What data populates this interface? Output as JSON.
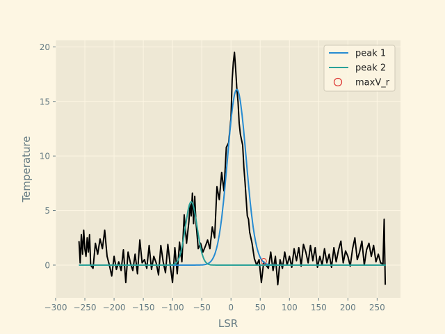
{
  "chart_data": {
    "type": "line",
    "title": "",
    "xlabel": "LSR",
    "ylabel": "Temperature",
    "xlim": [
      -300,
      290
    ],
    "ylim": [
      -3,
      20.6
    ],
    "xticks": [
      -300,
      -250,
      -200,
      -150,
      -100,
      -50,
      0,
      50,
      100,
      150,
      200,
      250
    ],
    "yticks": [
      0,
      5,
      10,
      15,
      20
    ],
    "xtick_labels": [
      "−300",
      "−250",
      "−200",
      "−150",
      "−100",
      "−50",
      "0",
      "50",
      "100",
      "150",
      "200",
      "250"
    ],
    "ytick_labels": [
      "0",
      "5",
      "10",
      "15",
      "20"
    ],
    "grid": true,
    "legend_position": "top-right",
    "colors": {
      "background": "#fdf6e3",
      "axes_face": "#eee8d5",
      "grid": "#fdf6e3",
      "spectrum": "#000000",
      "peak1": "#268bd2",
      "peak2": "#2aa198",
      "marker": "#dc322f",
      "text": "#657b83"
    },
    "spectrum": {
      "x": [
        -260,
        -258,
        -256,
        -254,
        -252,
        -250,
        -248,
        -246,
        -244,
        -242,
        -240,
        -236,
        -232,
        -228,
        -224,
        -220,
        -216,
        -212,
        -208,
        -204,
        -200,
        -196,
        -192,
        -188,
        -184,
        -180,
        -176,
        -172,
        -168,
        -164,
        -160,
        -156,
        -152,
        -148,
        -144,
        -140,
        -136,
        -132,
        -128,
        -124,
        -120,
        -116,
        -112,
        -108,
        -104,
        -100,
        -96,
        -92,
        -88,
        -84,
        -80,
        -76,
        -72,
        -70,
        -68,
        -66,
        -64,
        -62,
        -60,
        -56,
        -52,
        -48,
        -44,
        -40,
        -36,
        -32,
        -28,
        -24,
        -20,
        -16,
        -12,
        -8,
        -4,
        0,
        2,
        4,
        6,
        8,
        10,
        12,
        14,
        16,
        18,
        20,
        22,
        24,
        26,
        28,
        30,
        32,
        36,
        40,
        44,
        48,
        52,
        56,
        60,
        64,
        68,
        72,
        76,
        80,
        84,
        88,
        92,
        96,
        100,
        104,
        108,
        112,
        116,
        120,
        124,
        128,
        132,
        136,
        140,
        144,
        148,
        152,
        156,
        160,
        164,
        168,
        172,
        176,
        180,
        184,
        188,
        192,
        196,
        200,
        204,
        208,
        212,
        216,
        220,
        224,
        228,
        232,
        236,
        240,
        244,
        248,
        252,
        256,
        260,
        262,
        264
      ],
      "y": [
        2.2,
        0.2,
        2.8,
        1.0,
        3.2,
        1.5,
        0.8,
        2.5,
        1.2,
        2.8,
        0.0,
        -0.3,
        2.0,
        1.0,
        2.4,
        1.5,
        3.2,
        0.8,
        0.0,
        -1.0,
        0.8,
        -0.4,
        0.3,
        -0.5,
        1.4,
        -1.6,
        1.2,
        0.2,
        -0.5,
        1.0,
        -0.8,
        2.3,
        0.2,
        0.5,
        -0.3,
        1.8,
        -0.4,
        0.8,
        0.2,
        -0.9,
        1.8,
        0.3,
        -0.7,
        1.9,
        0.0,
        -1.6,
        1.6,
        -0.8,
        2.1,
        0.3,
        4.6,
        2.0,
        4.0,
        5.6,
        4.5,
        6.6,
        3.8,
        6.3,
        4.0,
        1.5,
        2.0,
        1.2,
        1.7,
        2.3,
        1.5,
        3.5,
        2.5,
        7.2,
        6.0,
        8.5,
        6.8,
        10.8,
        11.2,
        13.5,
        17.0,
        18.6,
        19.5,
        18.0,
        16.2,
        15.0,
        13.0,
        12.0,
        11.5,
        11.0,
        9.0,
        7.6,
        6.0,
        4.5,
        4.2,
        3.0,
        2.0,
        0.6,
        0.0,
        0.5,
        -1.6,
        0.3,
        0.0,
        -0.3,
        1.2,
        -0.5,
        0.8,
        -1.8,
        0.5,
        -0.3,
        1.2,
        0.0,
        0.8,
        -0.2,
        1.5,
        0.4,
        1.6,
        -0.1,
        1.9,
        1.2,
        0.2,
        1.8,
        0.4,
        1.6,
        -0.2,
        0.8,
        0.0,
        1.5,
        0.2,
        1.0,
        -0.2,
        1.6,
        0.3,
        1.4,
        2.2,
        0.2,
        1.3,
        0.8,
        -0.1,
        1.5,
        2.5,
        0.5,
        1.2,
        2.2,
        0.0,
        1.4,
        2.0,
        0.8,
        1.8,
        0.3,
        1.0,
        0.2,
        0.1,
        4.2,
        -1.8
      ]
    },
    "series": [
      {
        "name": "peak 1",
        "kind": "gaussian",
        "amplitude": 16.1,
        "center": 10,
        "sigma": 16,
        "x_range": [
          -260,
          265
        ]
      },
      {
        "name": "peak 2",
        "kind": "gaussian",
        "amplitude": 5.8,
        "center": -68,
        "sigma": 10,
        "x_range": [
          -260,
          265
        ]
      }
    ],
    "markers": [
      {
        "name": "maxV_r",
        "x": 56,
        "y": 0.35
      }
    ],
    "legend": [
      "peak 1",
      "peak 2",
      "maxV_r"
    ]
  }
}
